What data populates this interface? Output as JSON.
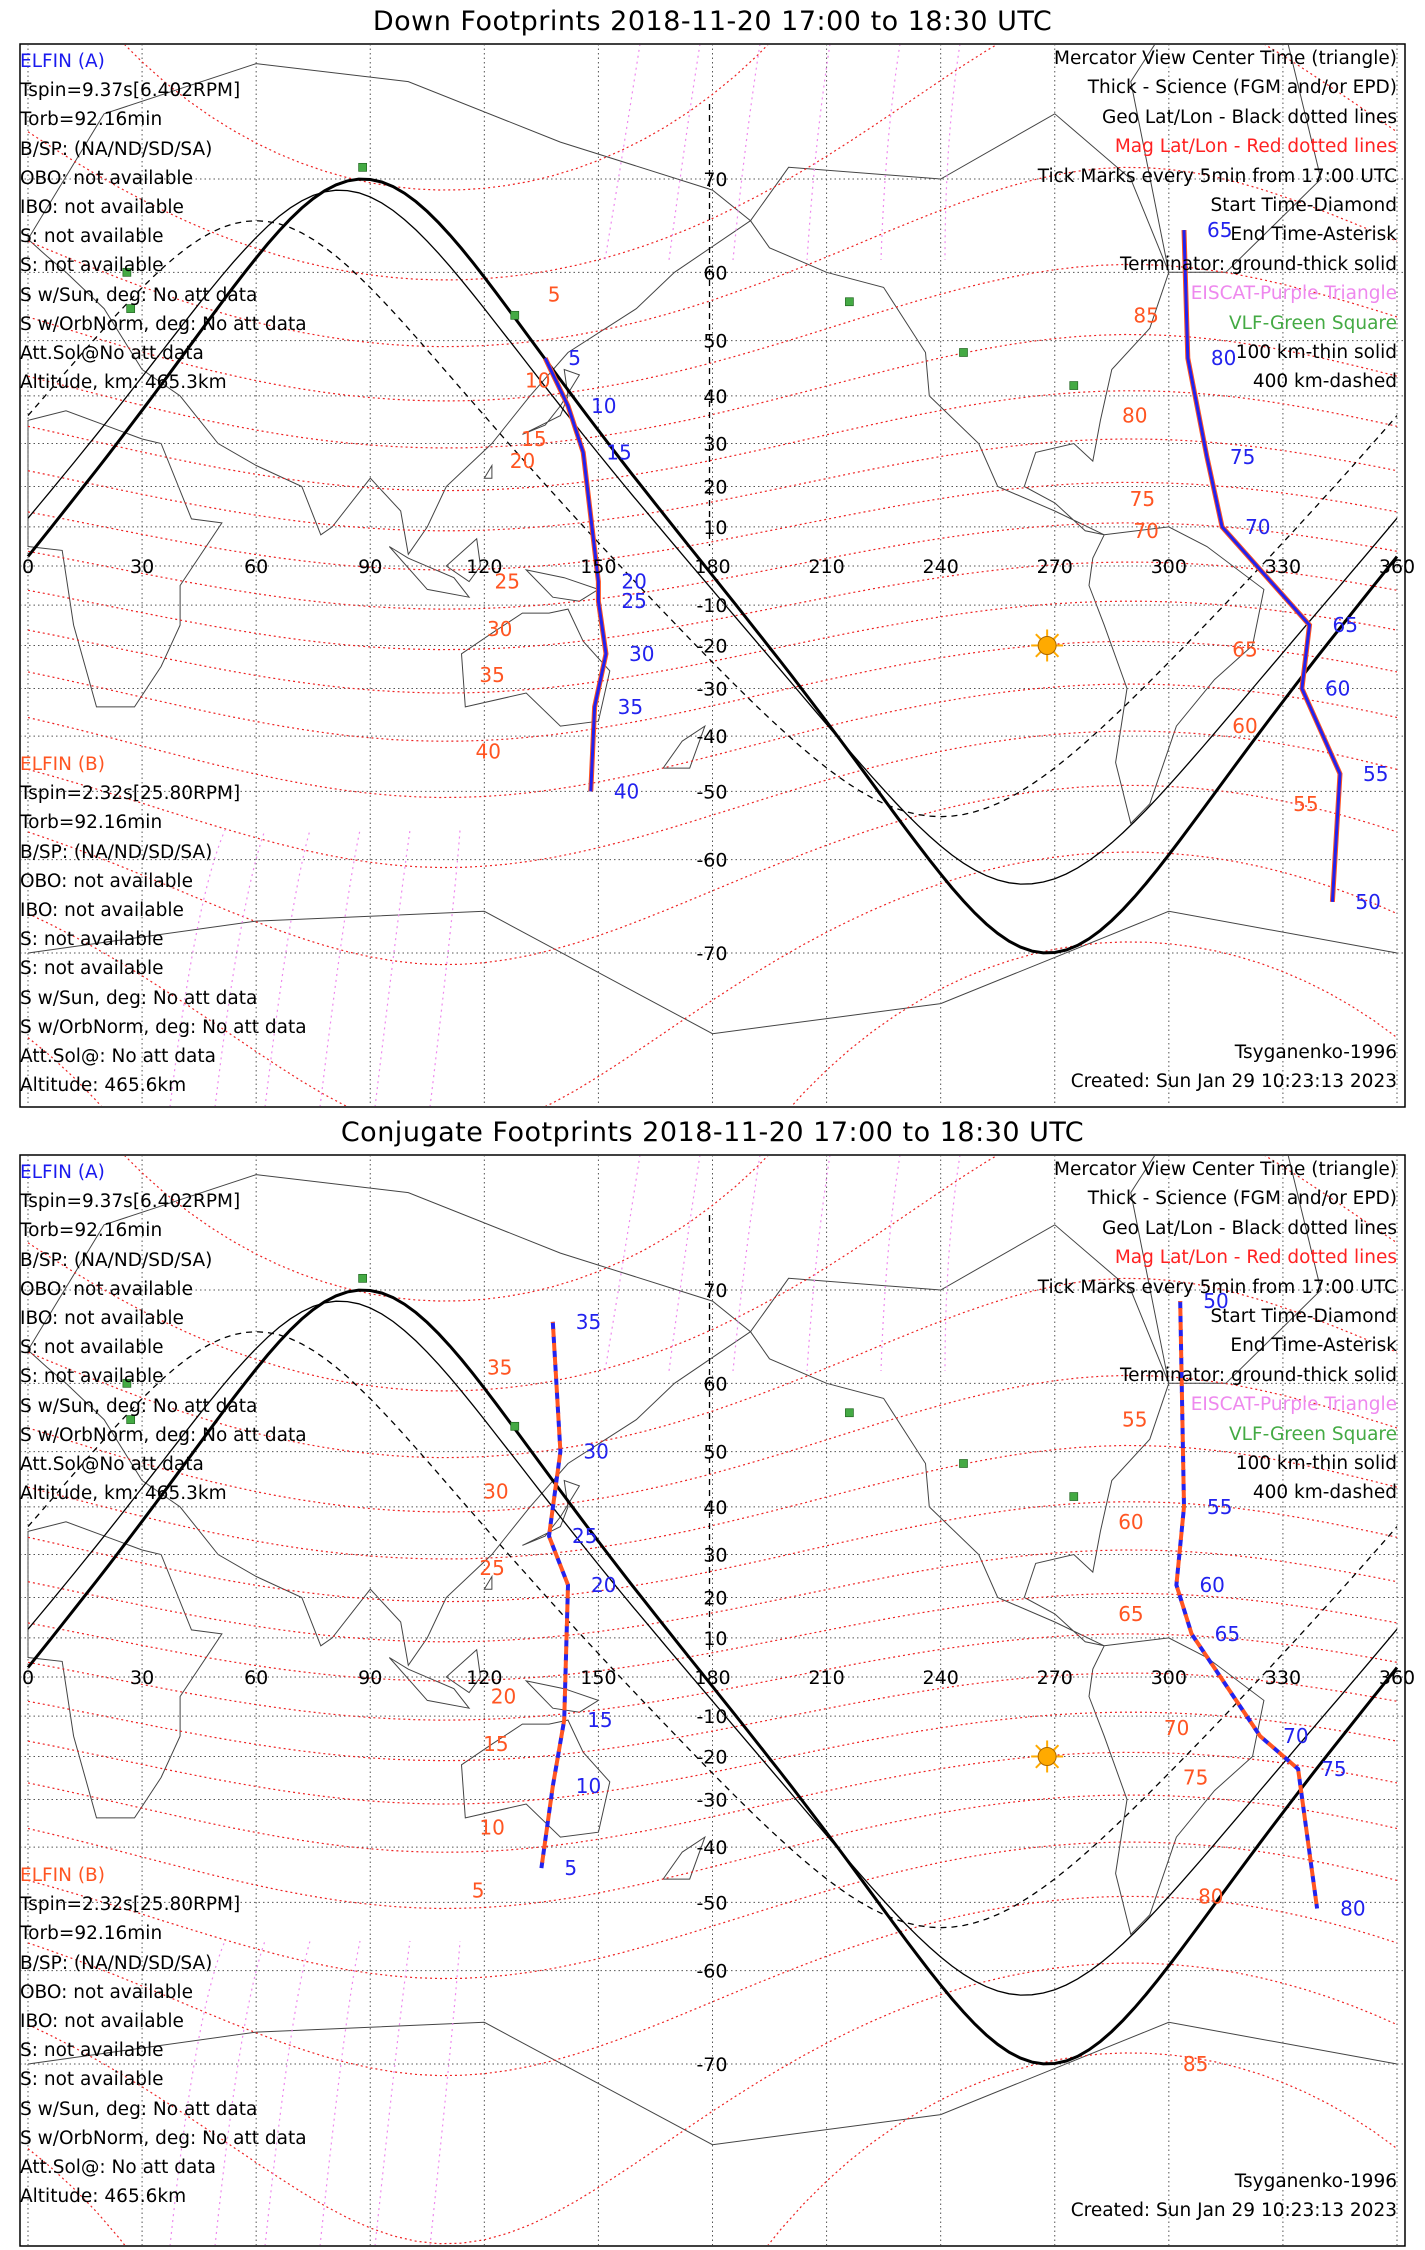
{
  "panels": [
    {
      "title": "Down Footprints 2018-11-20 17:00 to 18:30 UTC",
      "info_a": {
        "name": "ELFIN (A)",
        "lines": [
          "Tspin=9.37s[6.402RPM]",
          "Torb=92.16min",
          "B/SP: (NA/ND/SD/SA)",
          "OBO: not available",
          "IBO: not available",
          "S: not available",
          "S: not available",
          "S w/Sun, deg: No att data",
          "S w/OrbNorm, deg: No att data",
          "Att.Sol@No att data",
          "Altitude, km: 465.3km"
        ]
      },
      "info_b": {
        "name": "ELFIN (B)",
        "lines": [
          "Tspin=2.32s[25.80RPM]",
          "Torb=92.16min",
          "B/SP: (NA/ND/SD/SA)",
          "OBO: not available",
          "IBO: not available",
          "S: not available",
          "S: not available",
          "S w/Sun, deg: No att data",
          "S w/OrbNorm, deg: No att data",
          "Att.Sol@: No att data",
          "Altitude: 465.6km"
        ]
      },
      "footer_right": [
        "Tsyganenko-1996",
        "Created: Sun Jan 29 10:23:13 2023"
      ],
      "track_style": "solid",
      "track_a": {
        "labels": [
          [
            "5",
            141,
            47
          ],
          [
            "10",
            147,
            38
          ],
          [
            "15",
            151,
            28
          ],
          [
            "20",
            155,
            -4
          ],
          [
            "25",
            155,
            -9
          ],
          [
            "30",
            157,
            -22
          ],
          [
            "35",
            154,
            -34
          ],
          [
            "40",
            153,
            -50
          ]
        ]
      },
      "track_b": {
        "labels": [
          [
            "5",
            143,
            57
          ],
          [
            "10",
            137,
            43
          ],
          [
            "15",
            136,
            31
          ],
          [
            "20",
            133,
            26
          ],
          [
            "25",
            129,
            -4
          ],
          [
            "30",
            127,
            -16
          ],
          [
            "35",
            125,
            -27
          ],
          [
            "40",
            124,
            -43
          ]
        ]
      },
      "track2_a": {
        "labels": [
          [
            "65",
            309,
            65
          ],
          [
            "70",
            319,
            10
          ],
          [
            "75",
            315,
            27
          ],
          [
            "80",
            310,
            47
          ],
          [
            "65",
            342,
            -15
          ],
          [
            "60",
            340,
            -30
          ],
          [
            "55",
            350,
            -47
          ],
          [
            "50",
            348,
            -65
          ]
        ]
      },
      "track2_b": {
        "labels": [
          [
            "85",
            297,
            54
          ],
          [
            "80",
            294,
            36
          ],
          [
            "75",
            296,
            17
          ],
          [
            "70",
            297,
            9
          ],
          [
            "65",
            323,
            -21
          ],
          [
            "60",
            323,
            -38
          ],
          [
            "55",
            339,
            -52
          ]
        ]
      }
    },
    {
      "title": "Conjugate Footprints 2018-11-20 17:00 to 18:30 UTC",
      "info_a": {
        "name": "ELFIN (A)",
        "lines": [
          "Tspin=9.37s[6.402RPM]",
          "Torb=92.16min",
          "B/SP: (NA/ND/SD/SA)",
          "OBO: not available",
          "IBO: not available",
          "S: not available",
          "S: not available",
          "S w/Sun, deg: No att data",
          "S w/OrbNorm, deg: No att data",
          "Att.Sol@No att data",
          "Altitude, km: 465.3km"
        ]
      },
      "info_b": {
        "name": "ELFIN (B)",
        "lines": [
          "Tspin=2.32s[25.80RPM]",
          "Torb=92.16min",
          "B/SP: (NA/ND/SD/SA)",
          "OBO: not available",
          "IBO: not available",
          "S: not available",
          "S: not available",
          "S w/Sun, deg: No att data",
          "S w/OrbNorm, deg: No att data",
          "Att.Sol@: No att data",
          "Altitude: 465.6km"
        ]
      },
      "footer_right": [
        "Tsyganenko-1996",
        "Created: Sun Jan 29 10:23:13 2023"
      ],
      "track_style": "dashed",
      "track_a": {
        "labels": [
          [
            "35",
            143,
            67
          ],
          [
            "30",
            145,
            50
          ],
          [
            "25",
            142,
            34
          ],
          [
            "20",
            147,
            23
          ],
          [
            "15",
            146,
            -11
          ],
          [
            "10",
            143,
            -27
          ],
          [
            "5",
            140,
            -44
          ]
        ]
      },
      "track_b": {
        "labels": [
          [
            "35",
            127,
            62
          ],
          [
            "30",
            126,
            43
          ],
          [
            "25",
            125,
            27
          ],
          [
            "20",
            128,
            -5
          ],
          [
            "15",
            126,
            -17
          ],
          [
            "10",
            125,
            -36
          ],
          [
            "5",
            123,
            -48
          ]
        ]
      },
      "track2_a": {
        "labels": [
          [
            "50",
            308,
            69
          ],
          [
            "55",
            309,
            40
          ],
          [
            "60",
            307,
            23
          ],
          [
            "65",
            311,
            11
          ],
          [
            "70",
            329,
            -15
          ],
          [
            "75",
            339,
            -23
          ],
          [
            "80",
            344,
            -51
          ]
        ]
      },
      "track2_b": {
        "labels": [
          [
            "55",
            294,
            55
          ],
          [
            "60",
            293,
            37
          ],
          [
            "65",
            293,
            16
          ],
          [
            "70",
            305,
            -13
          ],
          [
            "75",
            310,
            -25
          ],
          [
            "80",
            314,
            -49
          ],
          [
            "85",
            310,
            -70
          ]
        ]
      }
    }
  ],
  "legend": [
    {
      "text": "Mercator View Center Time (triangle)",
      "color": "#000000"
    },
    {
      "text": "Thick - Science (FGM and/or EPD)",
      "color": "#000000"
    },
    {
      "text": "Geo Lat/Lon - Black dotted lines",
      "color": "#000000"
    },
    {
      "text": "Mag Lat/Lon - Red dotted lines",
      "color": "#ff2222"
    },
    {
      "text": "Tick Marks every 5min from 17:00 UTC",
      "color": "#000000"
    },
    {
      "text": "Start Time-Diamond",
      "color": "#000000"
    },
    {
      "text": "End Time-Asterisk",
      "color": "#000000"
    },
    {
      "text": "Terminator: ground-thick solid",
      "color": "#000000"
    },
    {
      "text": "EISCAT-Purple Triangle",
      "color": "#ee88ee"
    },
    {
      "text": "VLF-Green Square",
      "color": "#44aa44"
    },
    {
      "text": "100 km-thin solid",
      "color": "#000000"
    },
    {
      "text": "400 km-dashed",
      "color": "#000000"
    }
  ],
  "map": {
    "lon_ticks": [
      "0",
      "30",
      "60",
      "90",
      "120",
      "150",
      "180",
      "210",
      "240",
      "270",
      "300",
      "330",
      "360"
    ],
    "lat_ticks_north": [
      "70",
      "60",
      "50",
      "40",
      "30",
      "20",
      "10"
    ],
    "lat_ticks_south": [
      "-10",
      "-20",
      "-30",
      "-40",
      "-50",
      "-60",
      "-70"
    ],
    "lat_ticks_south_extra": [
      "-10",
      "-20",
      "-30",
      "-40",
      "-50",
      "-60",
      "-70"
    ],
    "lat_range": [
      -80,
      80
    ],
    "lon_range": [
      0,
      360
    ],
    "sun_lonlat": [
      268,
      -20
    ],
    "vlf_sites": [
      [
        88,
        71
      ],
      [
        26,
        60
      ],
      [
        27,
        55
      ],
      [
        128,
        54
      ],
      [
        216,
        56
      ],
      [
        246,
        48
      ],
      [
        275,
        42
      ]
    ]
  },
  "colors": {
    "track_a": "#2222ee",
    "track_b": "#ff5522",
    "mag_grid": "#ee2222",
    "geo_grid": "#555555",
    "eiscat": "#ee88ee",
    "vlf": "#44aa44",
    "sun": "#ffaa00"
  }
}
